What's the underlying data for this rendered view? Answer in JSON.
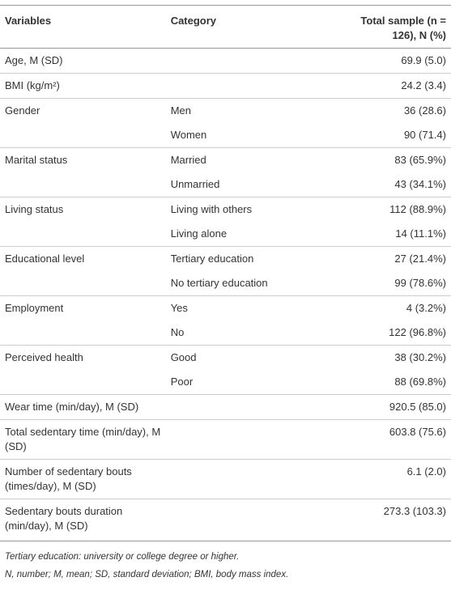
{
  "table": {
    "header": [
      "Variables",
      "Category",
      "Total sample (n = 126), N (%)"
    ],
    "rows": [
      [
        "Age, M (SD)",
        null,
        "69.9 (5.0)"
      ],
      [
        "BMI (kg/m²)",
        null,
        "24.2 (3.4)"
      ],
      [
        "Gender",
        "Men",
        "36 (28.6)"
      ],
      [
        null,
        "Women",
        "90 (71.4)"
      ],
      [
        "Marital status",
        "Married",
        "83 (65.9%)"
      ],
      [
        null,
        "Unmarried",
        "43 (34.1%)"
      ],
      [
        "Living status",
        "Living with others",
        "112 (88.9%)"
      ],
      [
        null,
        "Living alone",
        "14 (11.1%)"
      ],
      [
        "Educational level",
        "Tertiary education",
        "27 (21.4%)"
      ],
      [
        null,
        "No tertiary education",
        "99 (78.6%)"
      ],
      [
        "Employment",
        "Yes",
        "4 (3.2%)"
      ],
      [
        null,
        "No",
        "122 (96.8%)"
      ],
      [
        "Perceived health",
        "Good",
        "38 (30.2%)"
      ],
      [
        null,
        "Poor",
        "88 (69.8%)"
      ],
      [
        "Wear time (min/day), M (SD)",
        null,
        "920.5 (85.0)"
      ],
      [
        "Total sedentary time (min/day), M (SD)",
        null,
        "603.8 (75.6)"
      ],
      [
        "Number of sedentary bouts (times/day), M (SD)",
        null,
        "6.1 (2.0)"
      ],
      [
        "Sedentary bouts duration (min/day), M (SD)",
        null,
        "273.3 (103.3)"
      ]
    ],
    "notes": [
      "Tertiary education: university or college degree or higher.",
      "N, number; M, mean; SD, standard deviation; BMI, body mass index."
    ]
  }
}
